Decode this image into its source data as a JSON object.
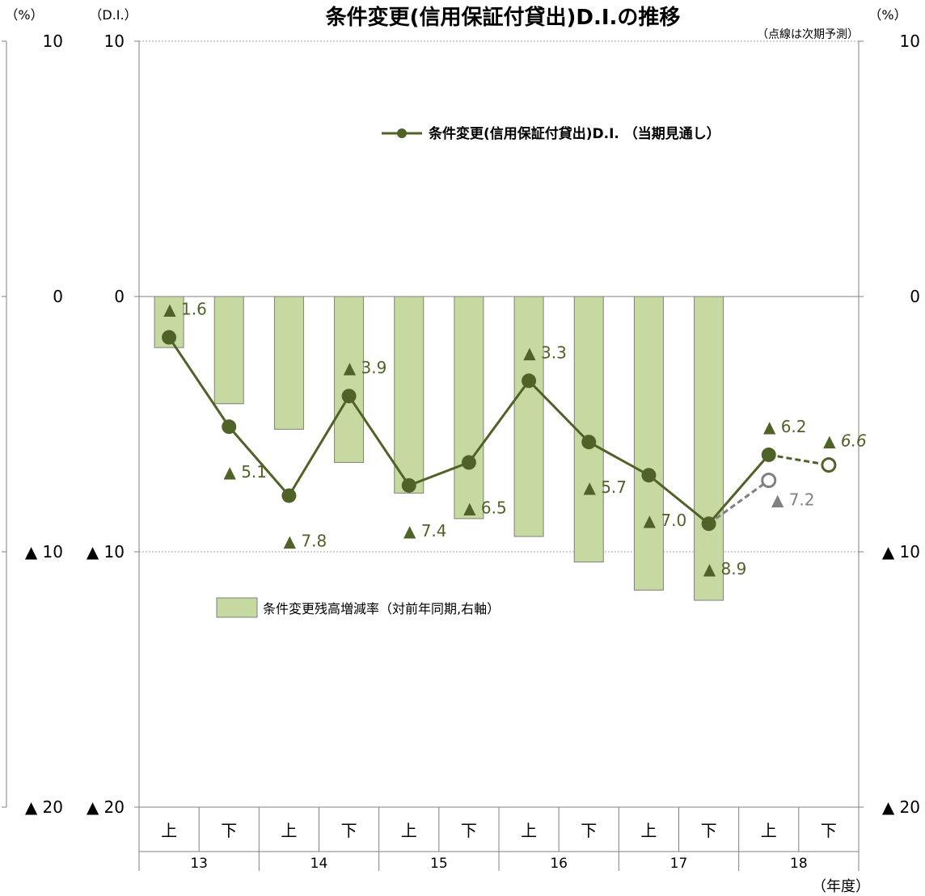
{
  "chart_data": {
    "type": "bar",
    "title": "条件変更(信用保証付貸出)D.I.の推移",
    "note": "（点線は次期予測）",
    "left_outer_unit": "（%）",
    "left_inner_unit": "（D.I.）",
    "right_unit": "（%）",
    "x_unit": "（年度）",
    "ylim": [
      -20,
      10
    ],
    "y_ticks": [
      {
        "value": 10,
        "label": "10"
      },
      {
        "value": 0,
        "label": "0"
      },
      {
        "value": -10,
        "label": "▲ 10"
      },
      {
        "value": -20,
        "label": "▲ 20"
      }
    ],
    "halves": [
      "上",
      "下",
      "上",
      "下",
      "上",
      "下",
      "上",
      "下",
      "上",
      "下",
      "上",
      "下"
    ],
    "years": [
      "13",
      "14",
      "15",
      "16",
      "17",
      "18"
    ],
    "bar_series": {
      "name": "条件変更残高増減率（対前年同期,右軸）",
      "color": "#c6d9a0",
      "values": [
        -2.0,
        -4.2,
        -5.2,
        -6.5,
        -7.7,
        -8.7,
        -9.4,
        -10.4,
        -11.5,
        -11.9,
        null,
        null
      ]
    },
    "line_series": {
      "name": "条件変更(信用保証付貸出)D.I. （当期見通し）",
      "color": "#4f6228",
      "values": [
        -1.6,
        -5.1,
        -7.8,
        -3.9,
        -7.4,
        -6.5,
        -3.3,
        -5.7,
        -7.0,
        -8.9,
        -6.2,
        null
      ],
      "labels": [
        "▲ 1.6",
        "▲ 5.1",
        "▲ 7.8",
        "▲ 3.9",
        "▲ 7.4",
        "▲ 6.5",
        "▲ 3.3",
        "▲ 5.7",
        "▲ 7.0",
        "▲ 8.9",
        "▲ 6.2",
        null
      ]
    },
    "forecast_dark": {
      "color": "#4f6228",
      "from_index": 10,
      "from_value": -6.2,
      "to_index": 11,
      "to_value": -6.6,
      "label": "▲ 6.6"
    },
    "forecast_gray": {
      "color": "#808080",
      "from_index": 9,
      "from_value": -8.9,
      "to_index": 10,
      "to_value": -7.2,
      "label": "▲ 7.2"
    }
  }
}
